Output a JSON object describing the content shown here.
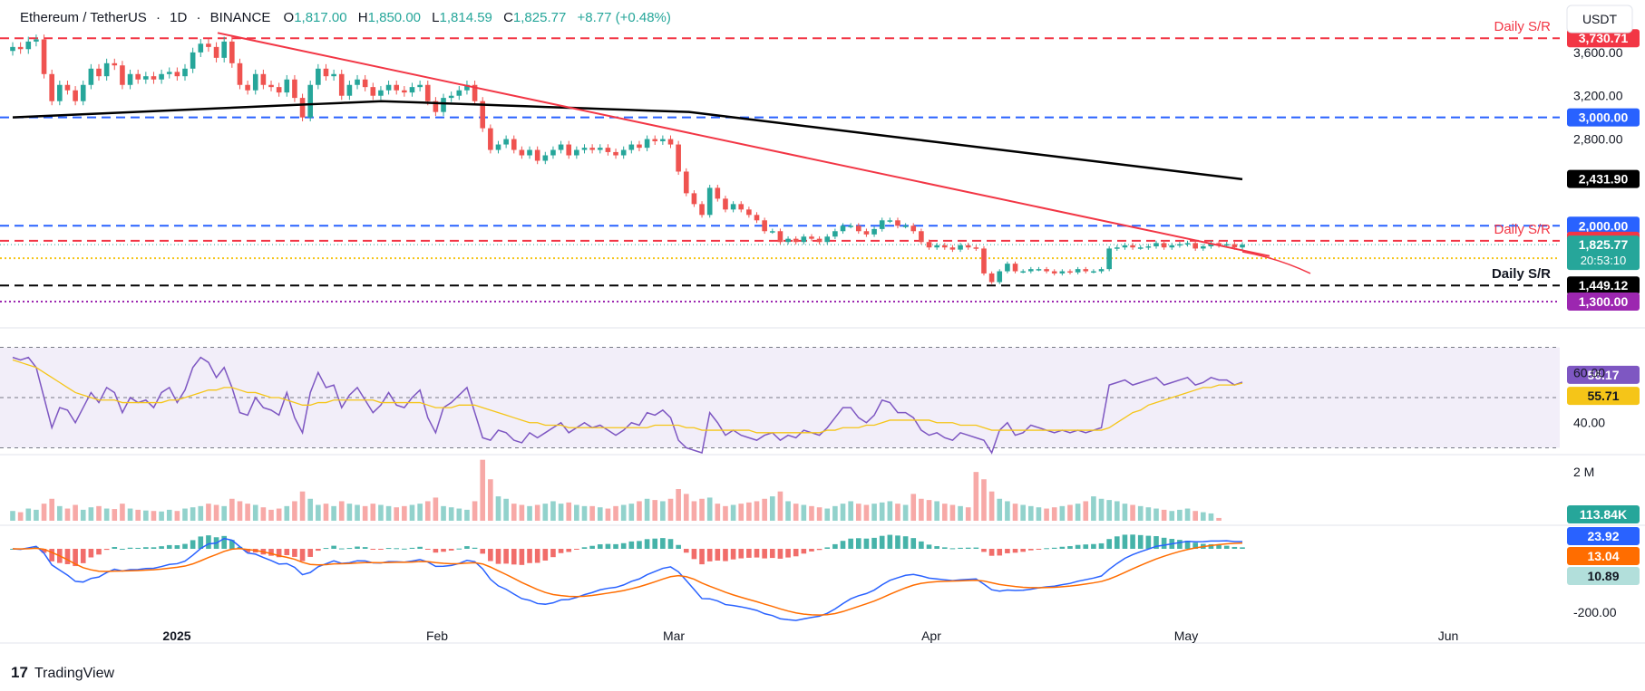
{
  "header": {
    "symbol": "Ethereum / TetherUS",
    "interval": "1D",
    "exchange": "BINANCE",
    "open_label": "O",
    "open": "1,817.00",
    "high_label": "H",
    "high": "1,850.00",
    "low_label": "L",
    "low": "1,814.59",
    "close_label": "C",
    "close": "1,825.77",
    "change": "+8.77 (+0.48%)",
    "currency": "USDT"
  },
  "brand": {
    "name": "TradingView",
    "logo": "17"
  },
  "colors": {
    "up": "#26a69a",
    "down": "#ef5350",
    "trend": "#f23645",
    "ma200": "#000000",
    "resistance_red": "#f23645",
    "support_blue": "#2962ff",
    "support_black": "#000000",
    "magenta": "#9c27b0",
    "yellow": "#f5c518",
    "rsi": "#7e57c2",
    "rsi_ma": "#f5c518",
    "macd": "#2962ff",
    "signal": "#ff6d00"
  },
  "chart_data": [
    {
      "type": "candlestick",
      "pane": "price",
      "xlabel": "",
      "ylabel": "",
      "x_ticks": [
        "2025",
        "Feb",
        "Mar",
        "Apr",
        "May",
        "Jun"
      ],
      "y_ticks": [
        3600,
        3200,
        2800
      ],
      "y_tick_labels": [
        "3,600.00",
        "3,200.00",
        "2,800.00"
      ],
      "ylim": [
        1200,
        4000
      ],
      "levels": [
        {
          "label": "3,730.71",
          "value": 3730.71,
          "style": "dashed",
          "color": "#f23645",
          "annotation": "Daily S/R"
        },
        {
          "label": "3,000.00",
          "value": 3000.0,
          "style": "dashed",
          "color": "#2962ff"
        },
        {
          "label": "2,000.00",
          "value": 2000.0,
          "style": "dashed",
          "color": "#2962ff"
        },
        {
          "label": "1,861.22",
          "value": 1861.22,
          "style": "dashed",
          "color": "#f23645",
          "annotation": "Daily S/R"
        },
        {
          "label": "1,700.00",
          "value": 1700.0,
          "style": "dotted",
          "color": "#f5c518"
        },
        {
          "label": "1,449.12",
          "value": 1449.12,
          "style": "dashed",
          "color": "#000000",
          "annotation": "Daily S/R"
        },
        {
          "label": "1,300.00",
          "value": 1300.0,
          "style": "dotted",
          "color": "#9c27b0"
        }
      ],
      "current": {
        "label": "1,825.77",
        "value": 1825.77,
        "countdown": "20:53:10"
      },
      "ma200": {
        "label": "2,431.90",
        "value": 2431.9
      },
      "candles_close": [
        3650,
        3630,
        3700,
        3720,
        3400,
        3150,
        3300,
        3250,
        3150,
        3300,
        3450,
        3380,
        3500,
        3480,
        3300,
        3400,
        3350,
        3380,
        3350,
        3400,
        3420,
        3380,
        3450,
        3600,
        3680,
        3650,
        3550,
        3700,
        3500,
        3300,
        3250,
        3400,
        3300,
        3280,
        3230,
        3350,
        3180,
        3000,
        3300,
        3450,
        3380,
        3400,
        3200,
        3300,
        3350,
        3280,
        3200,
        3250,
        3300,
        3250,
        3230,
        3280,
        3300,
        3150,
        3050,
        3180,
        3200,
        3250,
        3300,
        3150,
        2900,
        2700,
        2750,
        2800,
        2700,
        2650,
        2700,
        2600,
        2650,
        2700,
        2750,
        2650,
        2700,
        2720,
        2700,
        2720,
        2680,
        2650,
        2700,
        2750,
        2720,
        2800,
        2780,
        2800,
        2750,
        2500,
        2300,
        2200,
        2100,
        2350,
        2250,
        2150,
        2200,
        2150,
        2100,
        2050,
        1950,
        1950,
        1850,
        1880,
        1850,
        1900,
        1880,
        1850,
        1900,
        1950,
        2000,
        2000,
        1950,
        1920,
        1970,
        2050,
        2050,
        2000,
        2000,
        1950,
        1850,
        1800,
        1820,
        1800,
        1780,
        1820,
        1800,
        1790,
        1560,
        1480,
        1580,
        1650,
        1580,
        1580,
        1600,
        1600,
        1580,
        1560,
        1580,
        1570,
        1600,
        1580,
        1580,
        1600,
        1790,
        1800,
        1820,
        1800,
        1800,
        1810,
        1840,
        1800,
        1820,
        1830,
        1840,
        1790,
        1810,
        1840,
        1820,
        1830,
        1800,
        1825.77
      ]
    },
    {
      "type": "line",
      "pane": "rsi",
      "y_ticks": [
        60,
        40
      ],
      "y_tick_labels": [
        "60.00",
        "40.00"
      ],
      "ylim": [
        28,
        72
      ],
      "band": [
        30,
        70
      ],
      "series": [
        {
          "name": "",
          "last_label": "56.17",
          "values": [
            66,
            65,
            66,
            62,
            50,
            38,
            46,
            45,
            40,
            46,
            52,
            48,
            54,
            52,
            44,
            50,
            48,
            49,
            46,
            52,
            54,
            48,
            53,
            62,
            66,
            64,
            58,
            62,
            54,
            44,
            43,
            50,
            46,
            45,
            43,
            52,
            42,
            36,
            52,
            60,
            54,
            55,
            46,
            51,
            54,
            49,
            44,
            47,
            52,
            47,
            46,
            50,
            53,
            42,
            36,
            46,
            48,
            51,
            54,
            44,
            34,
            33,
            37,
            36,
            33,
            32,
            36,
            34,
            36,
            38,
            40,
            36,
            38,
            40,
            38,
            39,
            37,
            35,
            37,
            40,
            39,
            44,
            43,
            45,
            42,
            33,
            30,
            29,
            28,
            44,
            40,
            35,
            37,
            35,
            34,
            33,
            35,
            36,
            33,
            35,
            34,
            37,
            36,
            35,
            38,
            42,
            46,
            46,
            42,
            40,
            43,
            49,
            48,
            44,
            44,
            42,
            37,
            35,
            36,
            34,
            33,
            36,
            35,
            34,
            33,
            28,
            37,
            40,
            35,
            36,
            39,
            38,
            37,
            36,
            37,
            36,
            37,
            36,
            37,
            38,
            55,
            56,
            57,
            55,
            56,
            57,
            58,
            55,
            56,
            57,
            58,
            55,
            56,
            58,
            57,
            57,
            55,
            56.17
          ]
        },
        {
          "name": "",
          "last_label": "55.71",
          "values": [
            65,
            64,
            63,
            62,
            60,
            58,
            56,
            54,
            52,
            51,
            50,
            49,
            49,
            49,
            48,
            48,
            48,
            48,
            48,
            48,
            49,
            49,
            50,
            51,
            52,
            53,
            53,
            54,
            54,
            53,
            52,
            52,
            51,
            50,
            50,
            49,
            48,
            47,
            47,
            48,
            48,
            49,
            49,
            49,
            49,
            49,
            49,
            48,
            48,
            48,
            48,
            48,
            48,
            47,
            46,
            46,
            46,
            47,
            47,
            47,
            46,
            45,
            44,
            43,
            42,
            41,
            40,
            40,
            39,
            39,
            39,
            38,
            38,
            38,
            38,
            38,
            38,
            38,
            38,
            38,
            38,
            38,
            39,
            39,
            39,
            39,
            38,
            38,
            37,
            37,
            37,
            37,
            37,
            37,
            37,
            36,
            36,
            36,
            36,
            36,
            36,
            36,
            36,
            36,
            37,
            37,
            38,
            38,
            38,
            39,
            39,
            40,
            41,
            41,
            41,
            41,
            41,
            41,
            40,
            40,
            40,
            39,
            39,
            39,
            38,
            37,
            37,
            37,
            37,
            37,
            37,
            37,
            37,
            37,
            37,
            37,
            37,
            37,
            37,
            37,
            38,
            40,
            42,
            44,
            45,
            47,
            48,
            49,
            50,
            51,
            52,
            53,
            54,
            54,
            55,
            55,
            55,
            55.71
          ]
        }
      ]
    },
    {
      "type": "bar",
      "pane": "volume",
      "y_ticks": [
        2000000
      ],
      "y_tick_labels": [
        "2 M"
      ],
      "ylim": [
        0,
        2600000
      ],
      "last_label": "113.84K",
      "values": [
        400,
        350,
        500,
        450,
        700,
        900,
        600,
        500,
        650,
        450,
        550,
        600,
        500,
        480,
        700,
        500,
        450,
        420,
        400,
        380,
        450,
        400,
        500,
        550,
        600,
        700,
        650,
        600,
        900,
        800,
        700,
        650,
        550,
        450,
        500,
        600,
        800,
        1200,
        900,
        650,
        700,
        600,
        800,
        700,
        650,
        600,
        700,
        650,
        600,
        550,
        600,
        650,
        700,
        800,
        950,
        600,
        550,
        500,
        450,
        800,
        2500,
        1700,
        1000,
        900,
        700,
        650,
        600,
        650,
        700,
        800,
        700,
        750,
        650,
        600,
        600,
        550,
        500,
        600,
        650,
        700,
        800,
        900,
        850,
        800,
        900,
        1300,
        1100,
        800,
        900,
        950,
        700,
        600,
        650,
        700,
        750,
        800,
        900,
        1000,
        1200,
        800,
        700,
        650,
        600,
        550,
        500,
        600,
        700,
        800,
        700,
        650,
        700,
        750,
        800,
        700,
        650,
        1100,
        900,
        850,
        800,
        700,
        650,
        600,
        550,
        2000,
        1700,
        1200,
        900,
        800,
        700,
        650,
        600,
        550,
        500,
        550,
        600,
        650,
        700,
        800,
        1000,
        900,
        850,
        800,
        700,
        650,
        600,
        550,
        500,
        450,
        400,
        450,
        500,
        400,
        350,
        300,
        113.84
      ]
    },
    {
      "type": "line",
      "pane": "macd",
      "y_ticks": [
        -200
      ],
      "y_tick_labels": [
        "-200.00"
      ],
      "ylim": [
        -240,
        60
      ],
      "macd_label": "23.92",
      "signal_label": "13.04",
      "hist_label": "10.89"
    }
  ]
}
